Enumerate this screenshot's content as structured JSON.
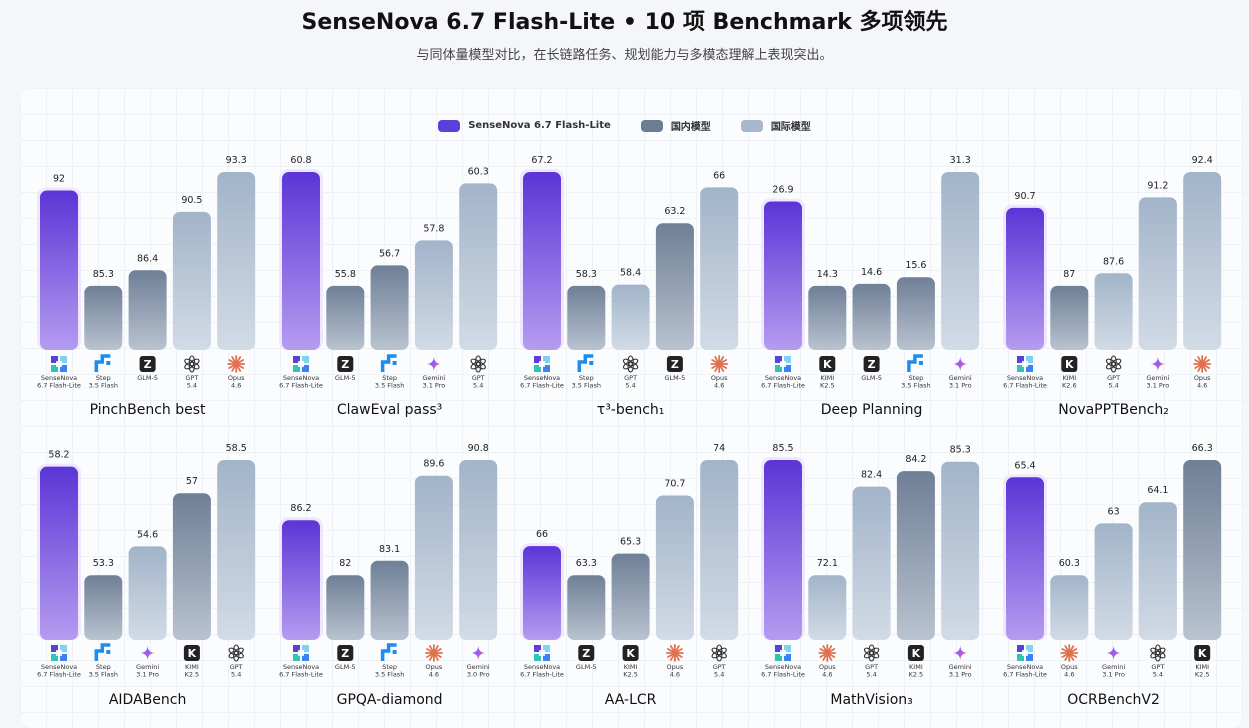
{
  "header": {
    "title": "SenseNova 6.7 Flash-Lite • 10 项 Benchmark 多项领先",
    "subtitle": "与同体量模型对比，在长链路任务、规划能力与多模态理解上表现突出。"
  },
  "legend": [
    {
      "label": "SenseNova 6.7 Flash-Lite",
      "color": "#5b3fd9"
    },
    {
      "label": "国内模型",
      "color": "#6b7c93"
    },
    {
      "label": "国际模型",
      "color": "#a7b8cc"
    }
  ],
  "colors": {
    "sensenova": "#5b3fd9",
    "domestic": "#6b7c93",
    "international": "#a7b8cc"
  },
  "chart_data": [
    {
      "type": "bar",
      "title": "PinchBench best",
      "bars": [
        {
          "model": [
            "SenseNova",
            "6.7 Flash-Lite"
          ],
          "icon": "sensenova-icon",
          "group": "sensenova",
          "value": 92
        },
        {
          "model": [
            "Step",
            "3.5 Flash"
          ],
          "icon": "step-icon",
          "group": "domestic",
          "value": 85.3
        },
        {
          "model": [
            "GLM-5"
          ],
          "icon": "zhipu-icon",
          "group": "domestic",
          "value": 86.4
        },
        {
          "model": [
            "GPT",
            "5.4"
          ],
          "icon": "openai-icon",
          "group": "international",
          "value": 90.5
        },
        {
          "model": [
            "Opus",
            "4.6"
          ],
          "icon": "anthropic-icon",
          "group": "international",
          "value": 93.3
        }
      ]
    },
    {
      "type": "bar",
      "title": "ClawEval pass³",
      "bars": [
        {
          "model": [
            "SenseNova",
            "6.7 Flash-Lite"
          ],
          "icon": "sensenova-icon",
          "group": "sensenova",
          "value": 60.8
        },
        {
          "model": [
            "GLM-5"
          ],
          "icon": "zhipu-icon",
          "group": "domestic",
          "value": 55.8
        },
        {
          "model": [
            "Step",
            "3.5 Flash"
          ],
          "icon": "step-icon",
          "group": "domestic",
          "value": 56.7
        },
        {
          "model": [
            "Gemini",
            "3.1 Pro"
          ],
          "icon": "gemini-icon",
          "group": "international",
          "value": 57.8
        },
        {
          "model": [
            "GPT",
            "5.4"
          ],
          "icon": "openai-icon",
          "group": "international",
          "value": 60.3
        }
      ]
    },
    {
      "type": "bar",
      "title": "τ³-bench₁",
      "bars": [
        {
          "model": [
            "SenseNova",
            "6.7 Flash-Lite"
          ],
          "icon": "sensenova-icon",
          "group": "sensenova",
          "value": 67.2
        },
        {
          "model": [
            "Step",
            "3.5 Flash"
          ],
          "icon": "step-icon",
          "group": "domestic",
          "value": 58.3
        },
        {
          "model": [
            "GPT",
            "5.4"
          ],
          "icon": "openai-icon",
          "group": "international",
          "value": 58.4
        },
        {
          "model": [
            "GLM-5"
          ],
          "icon": "zhipu-icon",
          "group": "domestic",
          "value": 63.2
        },
        {
          "model": [
            "Opus",
            "4.6"
          ],
          "icon": "anthropic-icon",
          "group": "international",
          "value": 66
        }
      ]
    },
    {
      "type": "bar",
      "title": "Deep Planning",
      "bars": [
        {
          "model": [
            "SenseNova",
            "6.7 Flash-Lite"
          ],
          "icon": "sensenova-icon",
          "group": "sensenova",
          "value": 26.9
        },
        {
          "model": [
            "KIMI",
            "K2.5"
          ],
          "icon": "kimi-icon",
          "group": "domestic",
          "value": 14.3
        },
        {
          "model": [
            "GLM-5"
          ],
          "icon": "zhipu-icon",
          "group": "domestic",
          "value": 14.6
        },
        {
          "model": [
            "Step",
            "3.5 Flash"
          ],
          "icon": "step-icon",
          "group": "domestic",
          "value": 15.6
        },
        {
          "model": [
            "Gemini",
            "3.1 Pro"
          ],
          "icon": "gemini-icon",
          "group": "international",
          "value": 31.3
        }
      ]
    },
    {
      "type": "bar",
      "title": "NovaPPTBench₂",
      "bars": [
        {
          "model": [
            "SenseNova",
            "6.7 Flash-Lite"
          ],
          "icon": "sensenova-icon",
          "group": "sensenova",
          "value": 90.7
        },
        {
          "model": [
            "KIMI",
            "K2.6"
          ],
          "icon": "kimi-icon",
          "group": "domestic",
          "value": 87
        },
        {
          "model": [
            "GPT",
            "5.4"
          ],
          "icon": "openai-icon",
          "group": "international",
          "value": 87.6
        },
        {
          "model": [
            "Gemini",
            "3.1 Pro"
          ],
          "icon": "gemini-icon",
          "group": "international",
          "value": 91.2
        },
        {
          "model": [
            "Opus",
            "4.6"
          ],
          "icon": "anthropic-icon",
          "group": "international",
          "value": 92.4
        }
      ]
    },
    {
      "type": "bar",
      "title": "AIDABench",
      "bars": [
        {
          "model": [
            "SenseNova",
            "6.7 Flash-Lite"
          ],
          "icon": "sensenova-icon",
          "group": "sensenova",
          "value": 58.2
        },
        {
          "model": [
            "Step",
            "3.5 Flash"
          ],
          "icon": "step-icon",
          "group": "domestic",
          "value": 53.3
        },
        {
          "model": [
            "Gemini",
            "3.1 Pro"
          ],
          "icon": "gemini-icon",
          "group": "international",
          "value": 54.6
        },
        {
          "model": [
            "KIMI",
            "K2.5"
          ],
          "icon": "kimi-icon",
          "group": "domestic",
          "value": 57
        },
        {
          "model": [
            "GPT",
            "5.4"
          ],
          "icon": "openai-icon",
          "group": "international",
          "value": 58.5
        }
      ]
    },
    {
      "type": "bar",
      "title": "GPQA-diamond",
      "bars": [
        {
          "model": [
            "SenseNova",
            "6.7 Flash-Lite"
          ],
          "icon": "sensenova-icon",
          "group": "sensenova",
          "value": 86.2
        },
        {
          "model": [
            "GLM-5"
          ],
          "icon": "zhipu-icon",
          "group": "domestic",
          "value": 82
        },
        {
          "model": [
            "Step",
            "3.5 Flash"
          ],
          "icon": "step-icon",
          "group": "domestic",
          "value": 83.1
        },
        {
          "model": [
            "Opus",
            "4.6"
          ],
          "icon": "anthropic-icon",
          "group": "international",
          "value": 89.6
        },
        {
          "model": [
            "Gemini",
            "3.0 Pro"
          ],
          "icon": "gemini-icon",
          "group": "international",
          "value": 90.8
        }
      ]
    },
    {
      "type": "bar",
      "title": "AA-LCR",
      "bars": [
        {
          "model": [
            "SenseNova",
            "6.7 Flash-Lite"
          ],
          "icon": "sensenova-icon",
          "group": "sensenova",
          "value": 66
        },
        {
          "model": [
            "GLM-5"
          ],
          "icon": "zhipu-icon",
          "group": "domestic",
          "value": 63.3
        },
        {
          "model": [
            "KIMI",
            "K2.5"
          ],
          "icon": "kimi-icon",
          "group": "domestic",
          "value": 65.3
        },
        {
          "model": [
            "Opus",
            "4.6"
          ],
          "icon": "anthropic-icon",
          "group": "international",
          "value": 70.7
        },
        {
          "model": [
            "GPT",
            "5.4"
          ],
          "icon": "openai-icon",
          "group": "international",
          "value": 74
        }
      ]
    },
    {
      "type": "bar",
      "title": "MathVision₃",
      "bars": [
        {
          "model": [
            "SenseNova",
            "6.7 Flash-Lite"
          ],
          "icon": "sensenova-icon",
          "group": "sensenova",
          "value": 85.5
        },
        {
          "model": [
            "Opus",
            "4.6"
          ],
          "icon": "anthropic-icon",
          "group": "international",
          "value": 72.1
        },
        {
          "model": [
            "GPT",
            "5.4"
          ],
          "icon": "openai-icon",
          "group": "international",
          "value": 82.4
        },
        {
          "model": [
            "KIMI",
            "K2.5"
          ],
          "icon": "kimi-icon",
          "group": "domestic",
          "value": 84.2
        },
        {
          "model": [
            "Gemini",
            "3.1 Pro"
          ],
          "icon": "gemini-icon",
          "group": "international",
          "value": 85.3
        }
      ]
    },
    {
      "type": "bar",
      "title": "OCRBenchV2",
      "bars": [
        {
          "model": [
            "SenseNova",
            "6.7 Flash-Lite"
          ],
          "icon": "sensenova-icon",
          "group": "sensenova",
          "value": 65.4
        },
        {
          "model": [
            "Opus",
            "4.6"
          ],
          "icon": "anthropic-icon",
          "group": "international",
          "value": 60.3
        },
        {
          "model": [
            "Gemini",
            "3.1 Pro"
          ],
          "icon": "gemini-icon",
          "group": "international",
          "value": 63
        },
        {
          "model": [
            "GPT",
            "5.4"
          ],
          "icon": "openai-icon",
          "group": "international",
          "value": 64.1
        },
        {
          "model": [
            "KIMI",
            "K2.5"
          ],
          "icon": "kimi-icon",
          "group": "domestic",
          "value": 66.3
        }
      ]
    }
  ]
}
